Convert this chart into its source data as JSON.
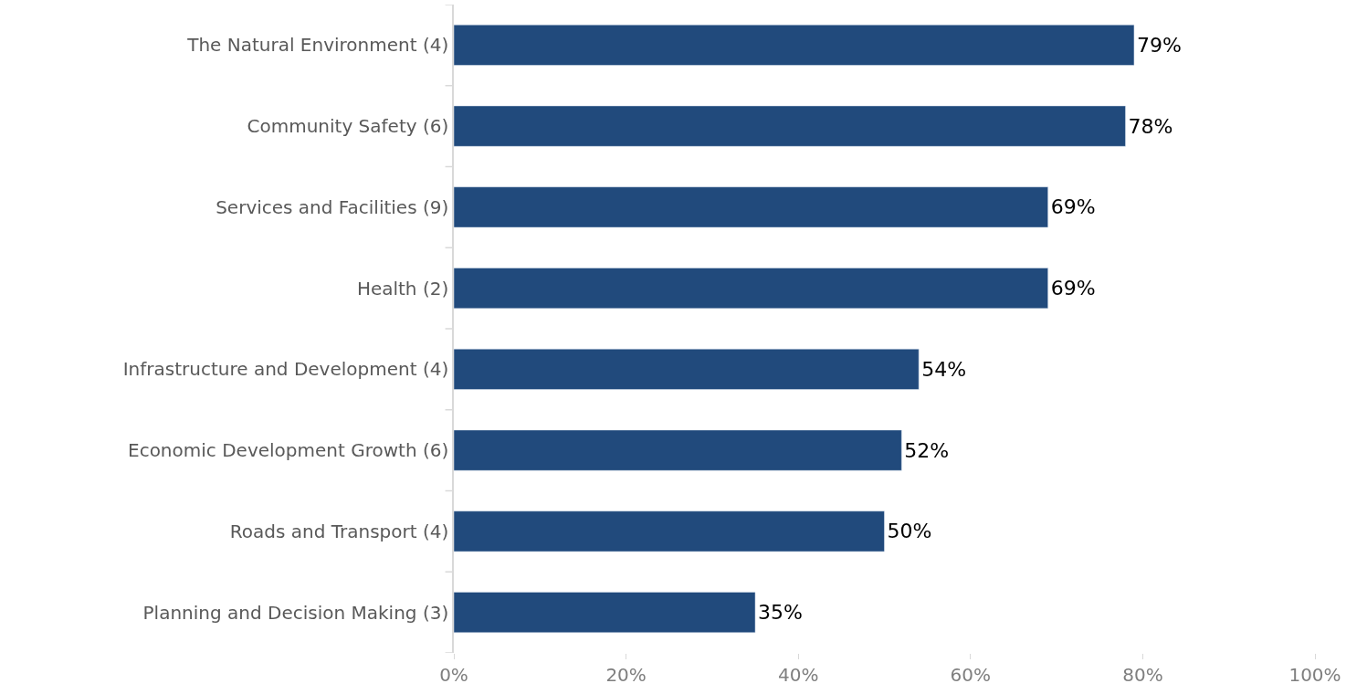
{
  "chart_data": {
    "type": "bar",
    "orientation": "horizontal",
    "categories": [
      "The Natural Environment (4)",
      "Community Safety (6)",
      "Services and Facilities (9)",
      "Health (2)",
      "Infrastructure and Development (4)",
      "Economic Development Growth (6)",
      "Roads and Transport (4)",
      "Planning and Decision Making (3)"
    ],
    "values": [
      79,
      78,
      69,
      69,
      54,
      52,
      50,
      35
    ],
    "value_labels": [
      "79%",
      "78%",
      "69%",
      "69%",
      "54%",
      "52%",
      "50%",
      "35%"
    ],
    "color": "#214a7c",
    "xlim": [
      0,
      100
    ],
    "xticks": [
      {
        "value": 0,
        "label": "0%"
      },
      {
        "value": 20,
        "label": "20%"
      },
      {
        "value": 40,
        "label": "40%"
      },
      {
        "value": 60,
        "label": "60%"
      },
      {
        "value": 80,
        "label": "80%"
      },
      {
        "value": 100,
        "label": "100%"
      }
    ],
    "grid": false,
    "legend": false
  }
}
